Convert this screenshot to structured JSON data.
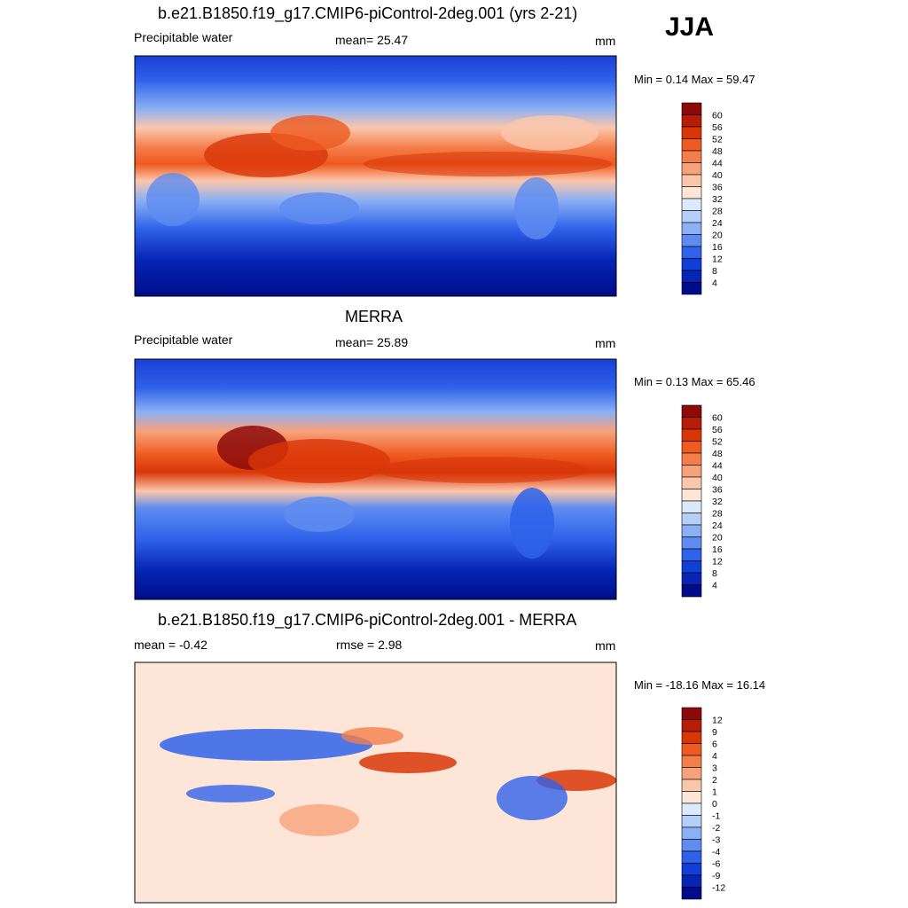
{
  "season": "JJA",
  "panels": [
    {
      "title": "b.e21.B1850.f19_g17.CMIP6-piControl-2deg.001 (yrs 2-21)",
      "left_label": "Precipitable water",
      "center_label": "mean=  25.47",
      "units": "mm",
      "minmax": "Min =   0.14 Max =  59.47"
    },
    {
      "title": "MERRA",
      "left_label": "Precipitable water",
      "center_label": "mean=  25.89",
      "units": "mm",
      "minmax": "Min =   0.13 Max =  65.46"
    },
    {
      "title": "b.e21.B1850.f19_g17.CMIP6-piControl-2deg.001 - MERRA",
      "left_label": "mean =  -0.42",
      "center_label": "rmse =   2.98",
      "units": "mm",
      "minmax": "Min = -18.16 Max =  16.14"
    }
  ],
  "chart_data": [
    {
      "type": "heatmap",
      "title": "b.e21.B1850.f19_g17.CMIP6-piControl-2deg.001 (yrs 2-21)",
      "variable": "Precipitable water",
      "units": "mm",
      "mean": 25.47,
      "min": 0.14,
      "max": 59.47,
      "colorbar_labels": [
        "60",
        "56",
        "52",
        "48",
        "44",
        "40",
        "36",
        "32",
        "28",
        "24",
        "20",
        "16",
        "12",
        "8",
        "4"
      ],
      "colorbar_colors": [
        "#8c0a0a",
        "#b61c07",
        "#d93608",
        "#ee5a20",
        "#f47e4b",
        "#f8a27c",
        "#fbc7ab",
        "#fde6d8",
        "#dbe9fb",
        "#b6cff8",
        "#8cb0f4",
        "#5e8cf0",
        "#2f62ea",
        "#0f3ed8",
        "#0625b4",
        "#000c8a"
      ]
    },
    {
      "type": "heatmap",
      "title": "MERRA",
      "variable": "Precipitable water",
      "units": "mm",
      "mean": 25.89,
      "min": 0.13,
      "max": 65.46,
      "colorbar_labels": [
        "60",
        "56",
        "52",
        "48",
        "44",
        "40",
        "36",
        "32",
        "28",
        "24",
        "20",
        "16",
        "12",
        "8",
        "4"
      ],
      "colorbar_colors": [
        "#8c0a0a",
        "#b61c07",
        "#d93608",
        "#ee5a20",
        "#f47e4b",
        "#f8a27c",
        "#fbc7ab",
        "#fde6d8",
        "#dbe9fb",
        "#b6cff8",
        "#8cb0f4",
        "#5e8cf0",
        "#2f62ea",
        "#0f3ed8",
        "#0625b4",
        "#000c8a"
      ]
    },
    {
      "type": "heatmap",
      "title": "b.e21.B1850.f19_g17.CMIP6-piControl-2deg.001 - MERRA",
      "units": "mm",
      "mean": -0.42,
      "rmse": 2.98,
      "min": -18.16,
      "max": 16.14,
      "colorbar_labels": [
        "12",
        "9",
        "6",
        "4",
        "3",
        "2",
        "1",
        "0",
        "-1",
        "-2",
        "-3",
        "-4",
        "-6",
        "-9",
        "-12"
      ],
      "colorbar_colors": [
        "#8c0a0a",
        "#b61c07",
        "#d93608",
        "#ee5a20",
        "#f47e4b",
        "#f8a27c",
        "#fbc7ab",
        "#fde6d8",
        "#dbe9fb",
        "#b6cff8",
        "#8cb0f4",
        "#5e8cf0",
        "#2f62ea",
        "#0f3ed8",
        "#0625b4",
        "#000c8a"
      ]
    }
  ]
}
